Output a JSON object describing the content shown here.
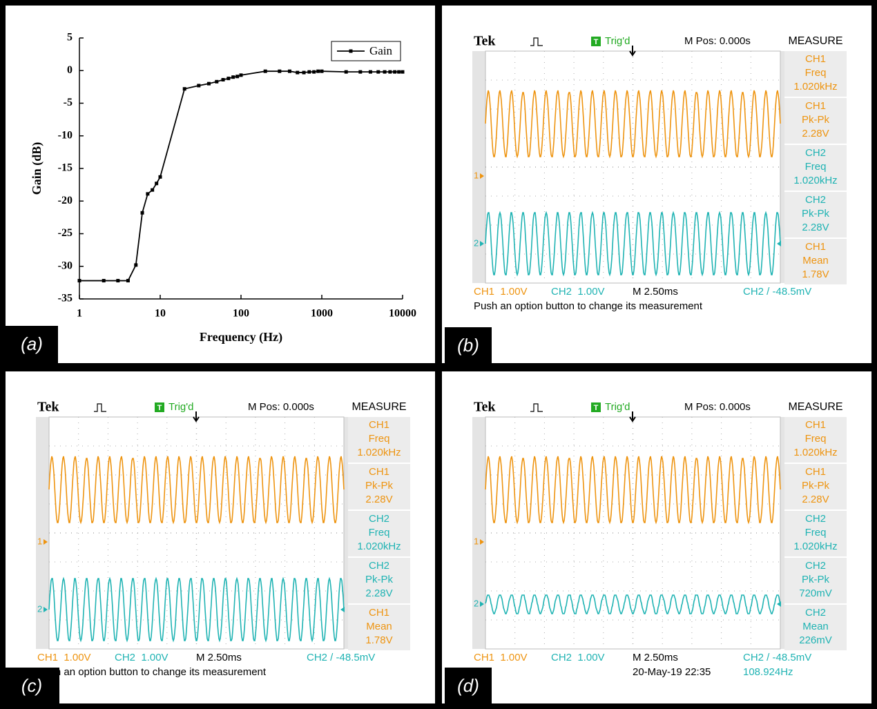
{
  "chart_data": {
    "type": "line",
    "panel_label": "(a)",
    "xlabel": "Frequency (Hz)",
    "ylabel": "Gain (dB)",
    "x": [
      1,
      2,
      3,
      4,
      5,
      6,
      7,
      8,
      9,
      10,
      20,
      30,
      40,
      50,
      60,
      70,
      80,
      90,
      100,
      200,
      300,
      400,
      500,
      600,
      700,
      800,
      900,
      1000,
      2000,
      3000,
      4000,
      5000,
      6000,
      7000,
      8000,
      9000,
      10000
    ],
    "series": [
      {
        "name": "Gain",
        "color": "#000000",
        "values": [
          -32.2,
          -32.2,
          -32.2,
          -32.2,
          -29.8,
          -21.8,
          -18.9,
          -18.3,
          -17.3,
          -16.3,
          -2.8,
          -2.3,
          -2.0,
          -1.7,
          -1.4,
          -1.2,
          -1.0,
          -0.9,
          -0.7,
          -0.1,
          -0.1,
          -0.1,
          -0.3,
          -0.3,
          -0.2,
          -0.2,
          -0.1,
          -0.1,
          -0.2,
          -0.2,
          -0.2,
          -0.2,
          -0.2,
          -0.2,
          -0.2,
          -0.2,
          -0.2
        ]
      }
    ],
    "xscale": "log",
    "xlim": [
      1,
      10000
    ],
    "xticks": [
      1,
      10,
      100,
      1000,
      10000
    ],
    "ylim": [
      -35,
      5
    ],
    "yticks": [
      -35,
      -30,
      -25,
      -20,
      -15,
      -10,
      -5,
      0,
      5
    ],
    "legend": "upper right"
  },
  "scopes": [
    {
      "panel_label": "(b)",
      "brand": "Tek",
      "trigger_icon": "T",
      "trigger_status": "Trig'd",
      "position": "M Pos: 0.000s",
      "menu_title": "MEASURE",
      "measurements": [
        {
          "channel": "CH1",
          "name": "Freq",
          "value": "1.020kHz",
          "color": "#ee9410"
        },
        {
          "channel": "CH1",
          "name": "Pk-Pk",
          "value": "2.28V",
          "color": "#ee9410"
        },
        {
          "channel": "CH2",
          "name": "Freq",
          "value": "1.020kHz",
          "color": "#1fb3b3"
        },
        {
          "channel": "CH2",
          "name": "Pk-Pk",
          "value": "2.28V",
          "color": "#1fb3b3"
        },
        {
          "channel": "CH1",
          "name": "Mean",
          "value": "1.78V",
          "color": "#ee9410"
        }
      ],
      "channels": [
        {
          "marker": "1",
          "scale": "CH1  1.00V",
          "color": "#ee9410"
        },
        {
          "marker": "2",
          "scale": "CH2  1.00V",
          "color": "#1fb3b3"
        }
      ],
      "timebase": "M 2.50ms",
      "trigger": "CH2 / -48.5mV",
      "trigger_color": "#1fb3b3",
      "message": "Push an option button to change its measurement"
    },
    {
      "panel_label": "(c)",
      "brand": "Tek",
      "trigger_icon": "T",
      "trigger_status": "Trig'd",
      "position": "M Pos: 0.000s",
      "menu_title": "MEASURE",
      "measurements": [
        {
          "channel": "CH1",
          "name": "Freq",
          "value": "1.020kHz",
          "color": "#ee9410"
        },
        {
          "channel": "CH1",
          "name": "Pk-Pk",
          "value": "2.28V",
          "color": "#ee9410"
        },
        {
          "channel": "CH2",
          "name": "Freq",
          "value": "1.020kHz",
          "color": "#1fb3b3"
        },
        {
          "channel": "CH2",
          "name": "Pk-Pk",
          "value": "2.28V",
          "color": "#1fb3b3"
        },
        {
          "channel": "CH1",
          "name": "Mean",
          "value": "1.78V",
          "color": "#ee9410"
        }
      ],
      "channels": [
        {
          "marker": "1",
          "scale": "CH1  1.00V",
          "color": "#ee9410"
        },
        {
          "marker": "2",
          "scale": "CH2  1.00V",
          "color": "#1fb3b3"
        }
      ],
      "timebase": "M 2.50ms",
      "trigger": "CH2 / -48.5mV",
      "trigger_color": "#1fb3b3",
      "message": "Push an option button to change its measurement"
    },
    {
      "panel_label": "(d)",
      "brand": "Tek",
      "trigger_icon": "T",
      "trigger_status": "Trig'd",
      "position": "M Pos: 0.000s",
      "menu_title": "MEASURE",
      "measurements": [
        {
          "channel": "CH1",
          "name": "Freq",
          "value": "1.020kHz",
          "color": "#ee9410"
        },
        {
          "channel": "CH1",
          "name": "Pk-Pk",
          "value": "2.28V",
          "color": "#ee9410"
        },
        {
          "channel": "CH2",
          "name": "Freq",
          "value": "1.020kHz",
          "color": "#1fb3b3"
        },
        {
          "channel": "CH2",
          "name": "Pk-Pk",
          "value": "720mV",
          "color": "#1fb3b3"
        },
        {
          "channel": "CH2",
          "name": "Mean",
          "value": "226mV",
          "color": "#1fb3b3"
        }
      ],
      "channels": [
        {
          "marker": "1",
          "scale": "CH1  1.00V",
          "color": "#ee9410"
        },
        {
          "marker": "2",
          "scale": "CH2  1.00V",
          "color": "#1fb3b3"
        }
      ],
      "timebase": "M 2.50ms",
      "trigger": "CH2 / -48.5mV",
      "trigger_color": "#1fb3b3",
      "date": "20-May-19 22:35",
      "trigger_freq": "108.924Hz"
    }
  ]
}
